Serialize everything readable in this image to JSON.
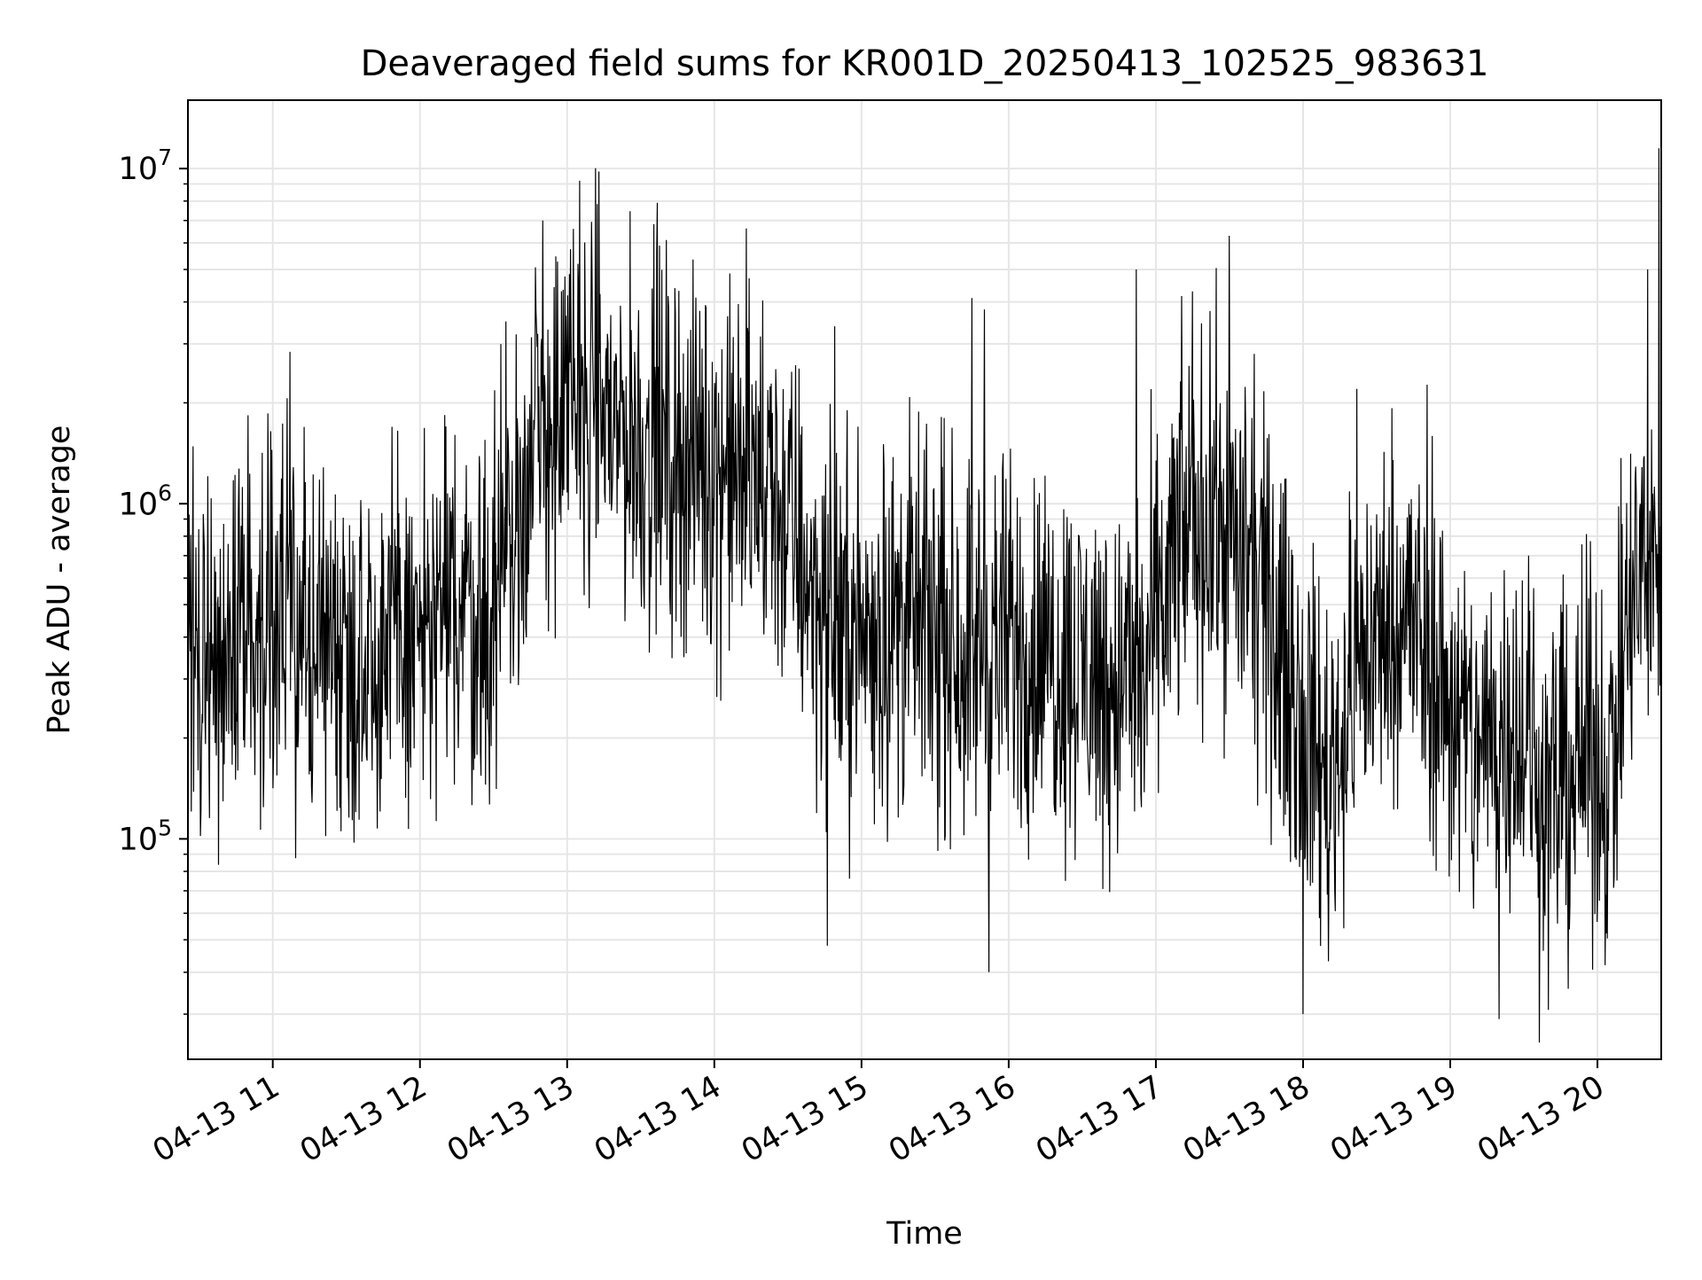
{
  "colors": {
    "line": "#000000",
    "grid": "#e6e6e6",
    "frame": "#000000",
    "background": "#ffffff"
  },
  "chart_data": {
    "type": "line",
    "title": "Deaveraged field sums for KR001D_20250413_102525_983631",
    "xlabel": "Time",
    "ylabel": "Peak ADU - average",
    "yscale": "log",
    "ylim": [
      22000,
      16000000
    ],
    "xlim": [
      "2025-04-13 10:25:25",
      "2025-04-13 20:26:00"
    ],
    "grid": true,
    "x_tick_labels": [
      "04-13 11",
      "04-13 12",
      "04-13 13",
      "04-13 14",
      "04-13 15",
      "04-13 16",
      "04-13 17",
      "04-13 18",
      "04-13 19",
      "04-13 20"
    ],
    "x_ticks": [
      "2025-04-13 11:00",
      "2025-04-13 12:00",
      "2025-04-13 13:00",
      "2025-04-13 14:00",
      "2025-04-13 15:00",
      "2025-04-13 16:00",
      "2025-04-13 17:00",
      "2025-04-13 18:00",
      "2025-04-13 19:00",
      "2025-04-13 20:00"
    ],
    "y_ticks": [
      {
        "value": 100000,
        "base": "10",
        "exp": "5"
      },
      {
        "value": 1000000,
        "base": "10",
        "exp": "6"
      },
      {
        "value": 10000000,
        "base": "10",
        "exp": "7"
      }
    ],
    "series": [
      {
        "x": [
          "2025-04-13 10:25",
          "2025-04-13 10:45",
          "2025-04-13 11:00",
          "2025-04-13 11:20",
          "2025-04-13 11:40",
          "2025-04-13 12:00",
          "2025-04-13 12:15",
          "2025-04-13 12:30",
          "2025-04-13 12:45",
          "2025-04-13 13:00",
          "2025-04-13 13:15",
          "2025-04-13 13:30",
          "2025-04-13 13:45",
          "2025-04-13 14:00",
          "2025-04-13 14:15",
          "2025-04-13 14:30",
          "2025-04-13 14:45",
          "2025-04-13 15:00",
          "2025-04-13 15:20",
          "2025-04-13 15:40",
          "2025-04-13 16:00",
          "2025-04-13 16:20",
          "2025-04-13 16:40",
          "2025-04-13 16:55",
          "2025-04-13 17:10",
          "2025-04-13 17:25",
          "2025-04-13 17:40",
          "2025-04-13 17:55",
          "2025-04-13 18:10",
          "2025-04-13 18:25",
          "2025-04-13 18:40",
          "2025-04-13 18:55",
          "2025-04-13 19:10",
          "2025-04-13 19:25",
          "2025-04-13 19:40",
          "2025-04-13 19:55",
          "2025-04-13 20:05",
          "2025-04-13 20:15",
          "2025-04-13 20:26"
        ],
        "values": [
          350000,
          420000,
          450000,
          380000,
          380000,
          400000,
          500000,
          450000,
          1300000,
          2000000,
          1900000,
          1500000,
          1400000,
          1300000,
          1200000,
          900000,
          450000,
          400000,
          450000,
          380000,
          380000,
          350000,
          300000,
          300000,
          800000,
          900000,
          600000,
          300000,
          150000,
          350000,
          500000,
          300000,
          180000,
          250000,
          130000,
          180000,
          160000,
          550000,
          650000
        ],
        "spikes": [
          {
            "x": "2025-04-13 13:13",
            "y": 9800000
          },
          {
            "x": "2025-04-13 13:05",
            "y": 9200000
          },
          {
            "x": "2025-04-13 12:50",
            "y": 7000000
          },
          {
            "x": "2025-04-13 16:52",
            "y": 5000000
          },
          {
            "x": "2025-04-13 17:30",
            "y": 6300000
          },
          {
            "x": "2025-04-13 17:15",
            "y": 4300000
          },
          {
            "x": "2025-04-13 15:50",
            "y": 3800000
          },
          {
            "x": "2025-04-13 20:25",
            "y": 11500000
          },
          {
            "x": "2025-04-13 15:52",
            "y": 40000
          },
          {
            "x": "2025-04-13 18:00",
            "y": 30000
          },
          {
            "x": "2025-04-13 19:20",
            "y": 29000
          },
          {
            "x": "2025-04-13 14:46",
            "y": 48000
          },
          {
            "x": "2025-04-13 18:22",
            "y": 2200000
          },
          {
            "x": "2025-04-13 12:35",
            "y": 3500000
          }
        ]
      }
    ]
  }
}
